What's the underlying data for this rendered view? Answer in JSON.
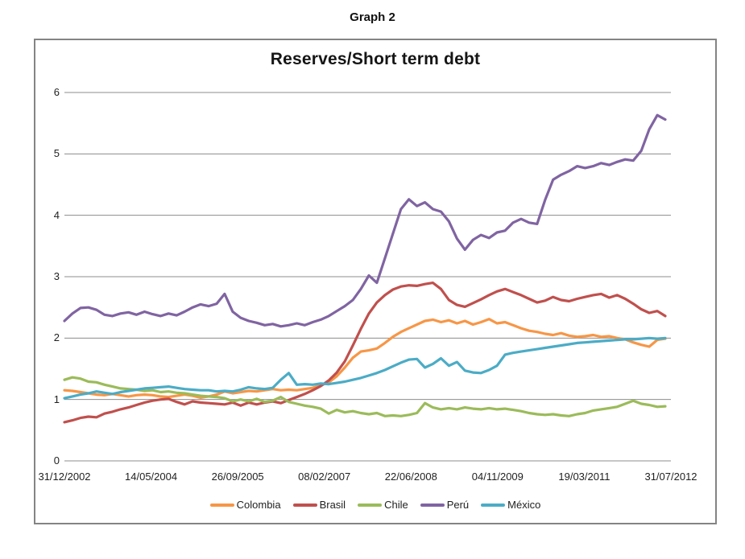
{
  "page": {
    "title": "Graph 2"
  },
  "chart": {
    "title": "Reserves/Short term debt",
    "grid_color": "#8c8c8c",
    "border_color": "#848484",
    "text_color": "#1f1f1f"
  },
  "chart_data": {
    "type": "line",
    "title": "Reserves/Short term debt",
    "x_tick_labels": [
      "31/12/2002",
      "14/05/2004",
      "26/09/2005",
      "08/02/2007",
      "22/06/2008",
      "04/11/2009",
      "19/03/2011",
      "31/07/2012"
    ],
    "y_ticks": [
      0,
      1,
      2,
      3,
      4,
      5,
      6
    ],
    "ylim": [
      0,
      6
    ],
    "grid": "horizontal",
    "legend_position": "bottom",
    "series": [
      {
        "name": "Colombia",
        "color": "#F79646",
        "values": [
          1.15,
          1.14,
          1.12,
          1.1,
          1.08,
          1.07,
          1.09,
          1.07,
          1.05,
          1.07,
          1.08,
          1.07,
          1.05,
          1.04,
          1.06,
          1.08,
          1.06,
          1.03,
          1.05,
          1.08,
          1.13,
          1.1,
          1.12,
          1.14,
          1.13,
          1.15,
          1.17,
          1.15,
          1.16,
          1.15,
          1.17,
          1.19,
          1.23,
          1.28,
          1.38,
          1.52,
          1.68,
          1.78,
          1.8,
          1.83,
          1.92,
          2.02,
          2.1,
          2.16,
          2.22,
          2.28,
          2.3,
          2.26,
          2.29,
          2.24,
          2.28,
          2.22,
          2.26,
          2.31,
          2.24,
          2.26,
          2.21,
          2.16,
          2.12,
          2.1,
          2.07,
          2.05,
          2.08,
          2.04,
          2.02,
          2.03,
          2.05,
          2.02,
          2.03,
          2.0,
          1.98,
          1.93,
          1.89,
          1.86,
          1.97,
          1.99
        ]
      },
      {
        "name": "Brasil",
        "color": "#C0504D",
        "values": [
          0.63,
          0.66,
          0.7,
          0.72,
          0.71,
          0.77,
          0.8,
          0.84,
          0.87,
          0.91,
          0.95,
          0.98,
          1.0,
          1.01,
          0.96,
          0.92,
          0.97,
          0.95,
          0.94,
          0.93,
          0.92,
          0.95,
          0.9,
          0.95,
          0.92,
          0.95,
          0.97,
          0.94,
          0.99,
          1.04,
          1.09,
          1.15,
          1.22,
          1.31,
          1.44,
          1.62,
          1.88,
          2.15,
          2.4,
          2.58,
          2.7,
          2.79,
          2.84,
          2.86,
          2.85,
          2.88,
          2.9,
          2.8,
          2.62,
          2.54,
          2.51,
          2.57,
          2.63,
          2.7,
          2.76,
          2.8,
          2.75,
          2.7,
          2.64,
          2.58,
          2.61,
          2.67,
          2.62,
          2.6,
          2.64,
          2.67,
          2.7,
          2.72,
          2.66,
          2.7,
          2.64,
          2.56,
          2.47,
          2.41,
          2.44,
          2.36
        ]
      },
      {
        "name": "Chile",
        "color": "#9BBB59",
        "values": [
          1.32,
          1.36,
          1.34,
          1.29,
          1.28,
          1.24,
          1.21,
          1.18,
          1.17,
          1.16,
          1.14,
          1.15,
          1.12,
          1.13,
          1.11,
          1.1,
          1.08,
          1.06,
          1.05,
          1.04,
          1.02,
          0.97,
          1.0,
          0.97,
          1.01,
          0.96,
          0.98,
          1.04,
          0.96,
          0.93,
          0.9,
          0.88,
          0.85,
          0.77,
          0.83,
          0.79,
          0.81,
          0.78,
          0.76,
          0.78,
          0.73,
          0.74,
          0.73,
          0.75,
          0.78,
          0.94,
          0.87,
          0.84,
          0.86,
          0.84,
          0.87,
          0.85,
          0.84,
          0.86,
          0.84,
          0.85,
          0.83,
          0.81,
          0.78,
          0.76,
          0.75,
          0.76,
          0.74,
          0.73,
          0.76,
          0.78,
          0.82,
          0.84,
          0.86,
          0.88,
          0.93,
          0.98,
          0.93,
          0.91,
          0.88,
          0.89
        ]
      },
      {
        "name": "Perú",
        "color": "#8064A2",
        "values": [
          2.28,
          2.4,
          2.49,
          2.5,
          2.46,
          2.38,
          2.36,
          2.4,
          2.42,
          2.38,
          2.43,
          2.39,
          2.36,
          2.4,
          2.37,
          2.43,
          2.5,
          2.55,
          2.52,
          2.56,
          2.72,
          2.43,
          2.33,
          2.28,
          2.25,
          2.21,
          2.23,
          2.19,
          2.21,
          2.24,
          2.21,
          2.26,
          2.3,
          2.36,
          2.44,
          2.52,
          2.62,
          2.8,
          3.02,
          2.9,
          3.3,
          3.7,
          4.1,
          4.26,
          4.15,
          4.21,
          4.1,
          4.06,
          3.9,
          3.62,
          3.44,
          3.6,
          3.68,
          3.63,
          3.72,
          3.75,
          3.88,
          3.94,
          3.88,
          3.86,
          4.25,
          4.58,
          4.66,
          4.72,
          4.8,
          4.77,
          4.8,
          4.85,
          4.82,
          4.87,
          4.91,
          4.89,
          5.05,
          5.4,
          5.63,
          5.56
        ]
      },
      {
        "name": "México",
        "color": "#4BACC6",
        "values": [
          1.02,
          1.05,
          1.08,
          1.1,
          1.13,
          1.11,
          1.09,
          1.12,
          1.14,
          1.16,
          1.18,
          1.19,
          1.2,
          1.21,
          1.19,
          1.17,
          1.16,
          1.15,
          1.15,
          1.13,
          1.14,
          1.13,
          1.16,
          1.2,
          1.18,
          1.17,
          1.19,
          1.32,
          1.43,
          1.24,
          1.25,
          1.24,
          1.26,
          1.25,
          1.27,
          1.29,
          1.32,
          1.35,
          1.39,
          1.43,
          1.48,
          1.54,
          1.6,
          1.65,
          1.66,
          1.52,
          1.58,
          1.67,
          1.55,
          1.61,
          1.47,
          1.44,
          1.43,
          1.48,
          1.55,
          1.73,
          1.76,
          1.78,
          1.8,
          1.82,
          1.84,
          1.86,
          1.88,
          1.9,
          1.92,
          1.93,
          1.94,
          1.95,
          1.96,
          1.97,
          1.98,
          1.98,
          1.99,
          2.0,
          1.99,
          2.0
        ]
      }
    ]
  }
}
